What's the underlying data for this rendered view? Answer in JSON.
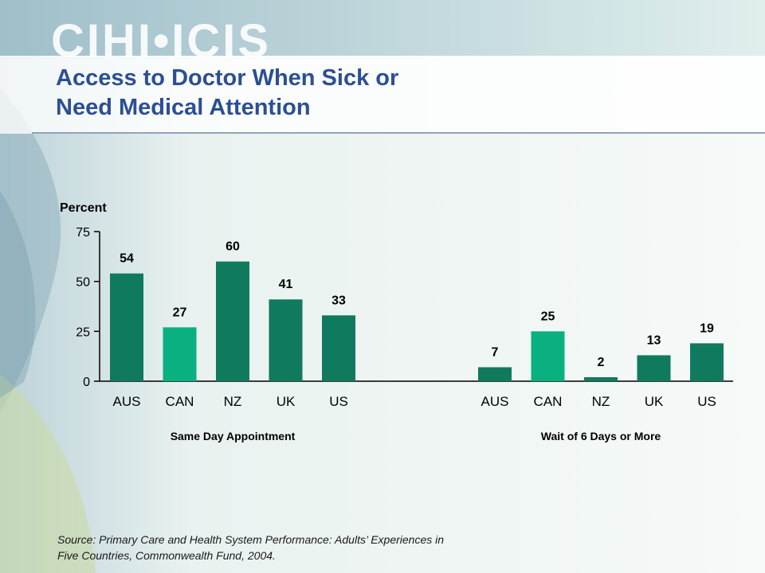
{
  "logo": "CIHI•ICIS",
  "title": {
    "line1": "Access to Doctor When Sick or",
    "line2": "Need Medical Attention"
  },
  "source": {
    "line1": "Source: Primary Care and Health System Performance: Adults’ Experiences in",
    "line2": "Five Countries, Commonwealth Fund, 2004."
  },
  "colors": {
    "dark_bar": "#0f7a5e",
    "light_bar": "#0ab080",
    "title": "#2b4f95"
  },
  "chart_data": {
    "type": "bar",
    "ylabel": "Percent",
    "ylim": [
      0,
      75
    ],
    "yticks": [
      0,
      25,
      50,
      75
    ],
    "grid": false,
    "groups": [
      {
        "name": "Same Day Appointment",
        "categories": [
          "AUS",
          "CAN",
          "NZ",
          "UK",
          "US"
        ],
        "values": [
          54,
          27,
          60,
          41,
          33
        ]
      },
      {
        "name": "Wait of 6 Days or More",
        "categories": [
          "AUS",
          "CAN",
          "NZ",
          "UK",
          "US"
        ],
        "values": [
          7,
          25,
          2,
          13,
          19
        ]
      }
    ],
    "highlight_category": "CAN"
  }
}
